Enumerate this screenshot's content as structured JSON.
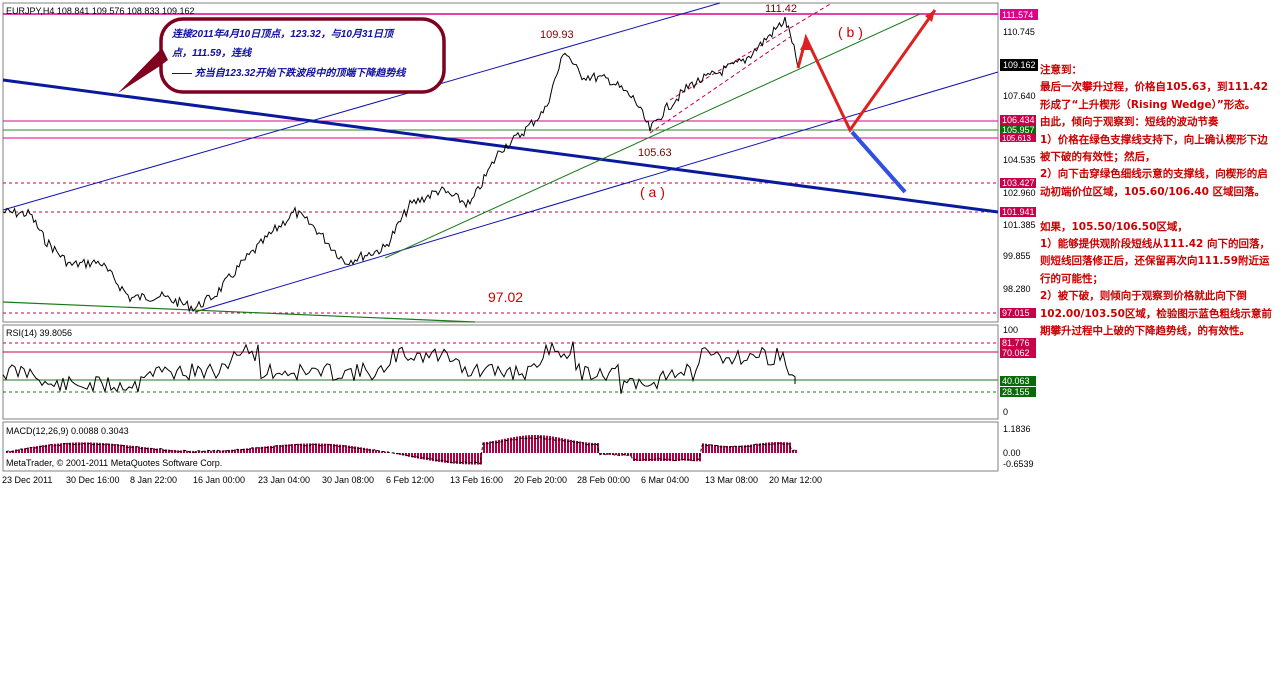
{
  "symbol_header": "EURJPY,H4  108.841 109.576 108.833 109.162",
  "price_axis": {
    "ticks": [
      "110.745",
      "107.640",
      "106.434",
      "105.957",
      "105.613",
      "104.535",
      "103.427",
      "102.960",
      "101.941",
      "101.385",
      "99.855",
      "98.280",
      "97.015"
    ],
    "current_price": "109.162",
    "top_line_price": "111.574"
  },
  "price_labels": {
    "high_109": "109.93",
    "high_111": "111.42",
    "low_105": "105.63",
    "low_97": "97.02",
    "mark_a": "( a )",
    "mark_b": "( b )"
  },
  "callout": {
    "line1": "连接2011年4月10日顶点，123.32，与10月31日顶",
    "line2": "点，111.59，连线",
    "line3": "—— 充当自123.32开始下跌波段中的顶端下降趋势线"
  },
  "rsi": {
    "label": "RSI(14) 39.8056",
    "axis_100": "100",
    "axis_0": "0",
    "level_high": "81.776",
    "level_70": "70.062",
    "level_40": "40.063",
    "level_28": "28.155"
  },
  "macd": {
    "label": "MACD(12,26,9) 0.0088 0.3043",
    "axis_top": "1.1836",
    "axis_zero": "0.00",
    "axis_bottom": "-0.6539",
    "copyright": "MetaTrader, © 2001-2011 MetaQuotes Software Corp."
  },
  "time_axis": [
    "23 Dec 2011",
    "30 Dec 16:00",
    "8 Jan 22:00",
    "16 Jan 00:00",
    "23 Jan 04:00",
    "30 Jan 08:00",
    "6 Feb 12:00",
    "13 Feb 16:00",
    "20 Feb 20:00",
    "28 Feb 00:00",
    "6 Mar 04:00",
    "13 Mar 08:00",
    "20 Mar 12:00"
  ],
  "commentary": [
    "注意到：",
    "最后一次攀升过程，价格自105.63，到111.42形成了“上升楔形（Rising Wedge）”形态。",
    "由此，倾向于观察到：短线的波动节奏",
    "1）价格在绿色支撑线支持下，向上确认楔形下边被下破的有效性；然后，",
    "2）向下击穿绿色细线示意的支撑线，向楔形的启动初端价位区域，105.60/106.40 区域回落。",
    "",
    "如果，105.50/106.50区域，",
    "1）能够提供观阶段短线从111.42 向下的回落，则短线回落修正后，还保留再次向111.59附近运行的可能性；",
    "2）被下破，则倾向于观察到价格就此向下倒102.00/103.50区域，检验图示蓝色粗线示意前期攀升过程中上破的下降趋势线，的有效性。"
  ],
  "colors": {
    "price_line": "#000000",
    "blue_channel": "#1010b0",
    "thick_trend": "#0a1a9c",
    "green_support": "#1a7a1a",
    "magenta_level": "#e0008a",
    "red_annotation": "#cc0000",
    "current_price_bg": "#000000",
    "level_label_bg": "#c8004a",
    "green_label_bg": "#0a6a0a"
  }
}
